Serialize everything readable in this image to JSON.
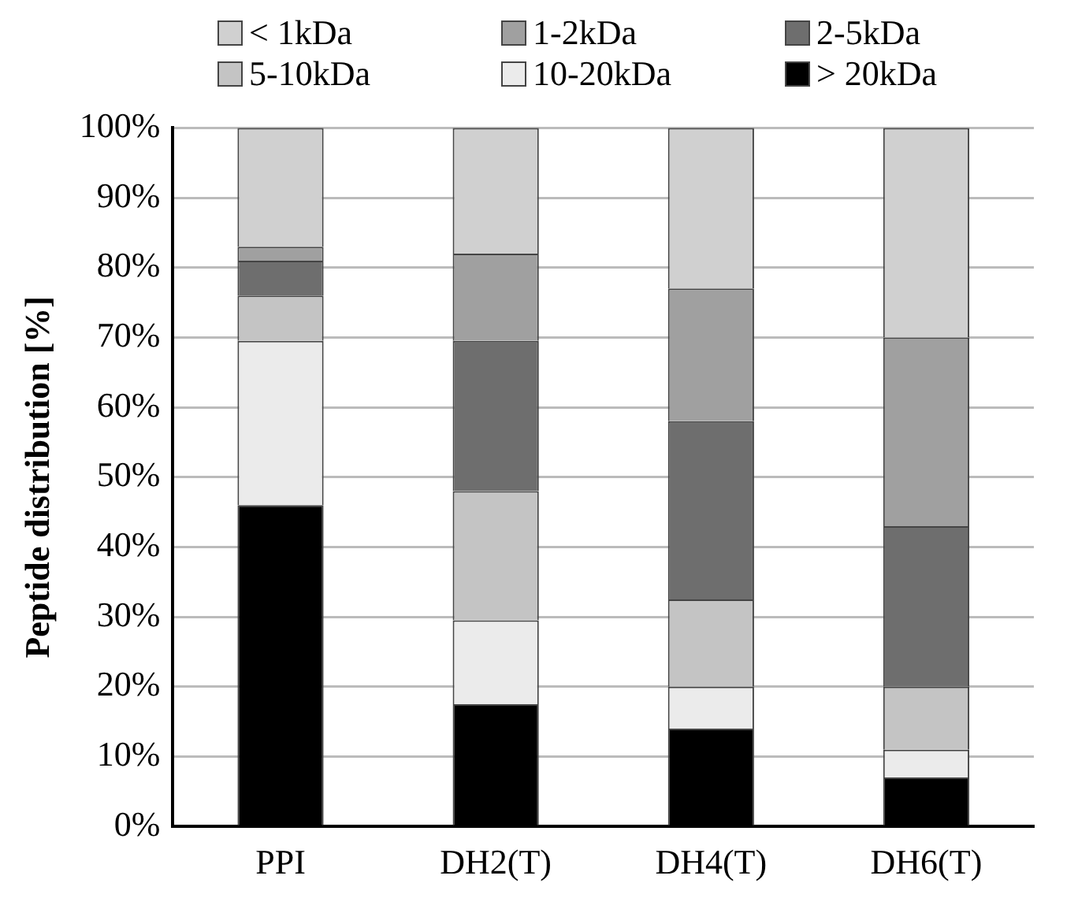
{
  "chart_data": {
    "type": "bar",
    "stacked": true,
    "ylabel": "Peptide distribution [%]",
    "categories": [
      "PPI",
      "DH2(T)",
      "DH4(T)",
      "DH6(T)"
    ],
    "series": [
      {
        "name": "> 20kDa",
        "color": "#000000",
        "values": [
          46,
          17.5,
          14,
          7
        ]
      },
      {
        "name": "10-20kDa",
        "color": "#ebebeb",
        "values": [
          23.5,
          12,
          6,
          4
        ]
      },
      {
        "name": "5-10kDa",
        "color": "#c4c4c4",
        "values": [
          6.5,
          18.5,
          12.5,
          9
        ]
      },
      {
        "name": "2-5kDa",
        "color": "#6e6e6e",
        "values": [
          5,
          21.5,
          25.5,
          23
        ]
      },
      {
        "name": "1-2kDa",
        "color": "#a0a0a0",
        "values": [
          2,
          12.5,
          19,
          27
        ]
      },
      {
        "name": "< 1kDa",
        "color": "#d0d0d0",
        "values": [
          17,
          18,
          23,
          30
        ]
      }
    ],
    "ylim": [
      0,
      100
    ],
    "yticks": [
      {
        "value": 0,
        "label": "0%"
      },
      {
        "value": 10,
        "label": "10%"
      },
      {
        "value": 20,
        "label": "20%"
      },
      {
        "value": 30,
        "label": "30%"
      },
      {
        "value": 40,
        "label": "40%"
      },
      {
        "value": 50,
        "label": "50%"
      },
      {
        "value": 60,
        "label": "60%"
      },
      {
        "value": 70,
        "label": "70%"
      },
      {
        "value": 80,
        "label": "80%"
      },
      {
        "value": 90,
        "label": "90%"
      },
      {
        "value": 100,
        "label": "100%"
      }
    ],
    "grid": "y",
    "legend": "top"
  }
}
